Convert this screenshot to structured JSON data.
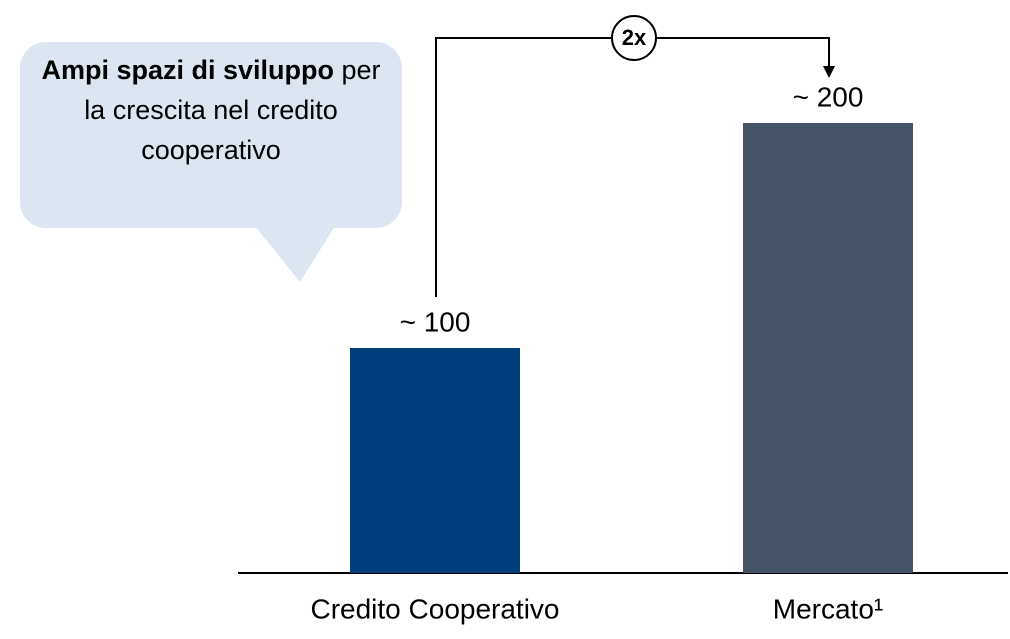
{
  "chart_data": {
    "type": "bar",
    "categories": [
      "Credito Cooperativo",
      "Mercato¹"
    ],
    "values": [
      100,
      200
    ],
    "value_labels": [
      "~ 100",
      "~ 200"
    ],
    "colors": [
      "#003f7d",
      "#465468"
    ],
    "comparison": "2x",
    "callout": {
      "bold": "Ampi spazi di sviluppo",
      "text": "per la crescita nel credito cooperativo"
    }
  }
}
